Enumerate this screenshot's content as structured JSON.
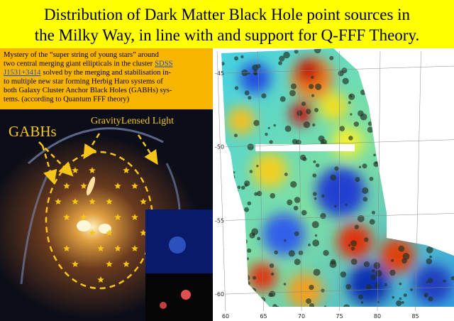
{
  "title": {
    "lines": [
      "Distribution of Dark Matter Black Hole point sources in",
      "the Milky Way, in line with and support for Q-FFF Theory."
    ]
  },
  "caption": {
    "lines": [
      [
        {
          "text": "Mystery of the “super string of young stars” around"
        }
      ],
      [
        {
          "text": "two central merging giant ellipticals in the cluster"
        },
        {
          "text": "SDSS",
          "link": true
        }
      ],
      [
        {
          "text": "J1531+3414",
          "link": true
        },
        {
          "text": "solved by the merging and stabilisation in-"
        }
      ],
      [
        {
          "text": "to multiple new star forming Herbig Haro systems of"
        }
      ],
      [
        {
          "text": "both Galaxy Cluster Anchor Black Holes (GABHs) sys-"
        }
      ],
      [
        {
          "text": "tems. (according to Quantum FFF theory)"
        }
      ]
    ]
  },
  "image_labels": {
    "gabhs": "GABHs",
    "lensed": "GravityLensed Light"
  },
  "map": {
    "yticks": [
      -45,
      -50,
      -55,
      -60
    ],
    "xticks": [
      60,
      65,
      70,
      75,
      80,
      85
    ]
  }
}
